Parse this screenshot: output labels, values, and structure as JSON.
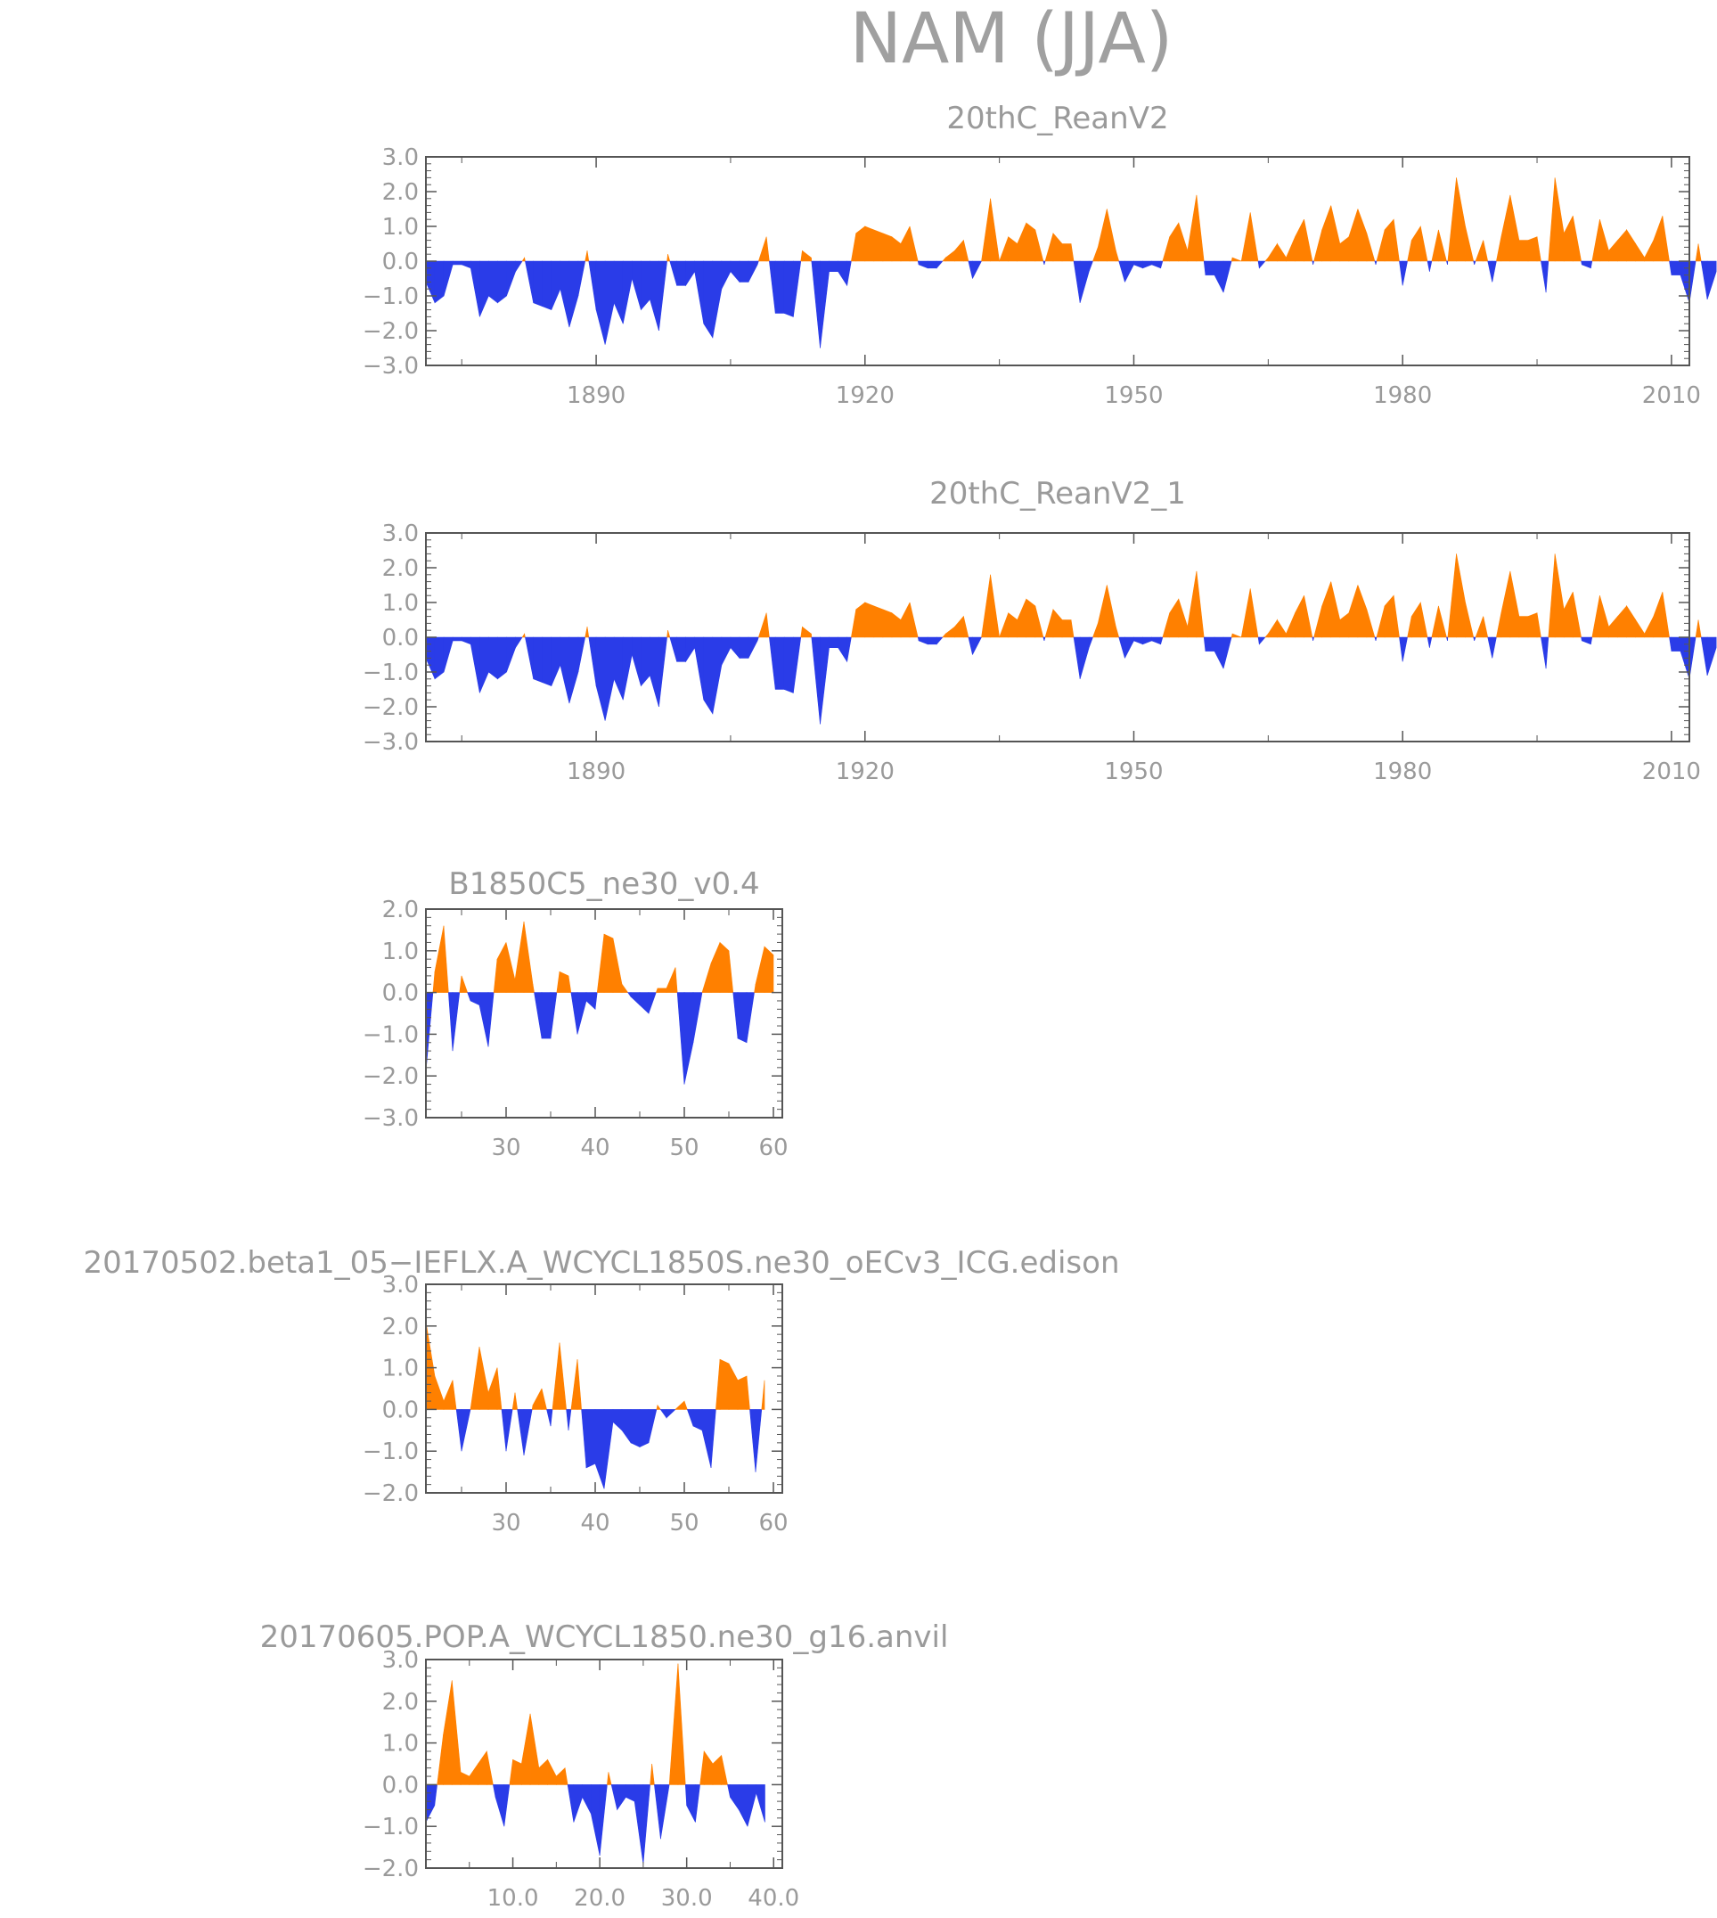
{
  "main_title": "NAM (JJA)",
  "colors": {
    "positive": "#ff8000",
    "negative": "#2a3ce8",
    "axis": "#555555",
    "text": "#9a9a9a"
  },
  "chart_data": [
    {
      "type": "area",
      "title": "20thC_ReanV2",
      "xlim": [
        1871,
        2012
      ],
      "ylim": [
        -3.0,
        3.0
      ],
      "xticks": [
        1890,
        1920,
        1950,
        1980,
        2010
      ],
      "xtick_labels": [
        "1890",
        "1920",
        "1950",
        "1980",
        "2010"
      ],
      "yticks": [
        -3.0,
        -2.0,
        -1.0,
        0.0,
        1.0,
        2.0,
        3.0
      ],
      "ytick_labels": [
        "−3.0",
        "−2.0",
        "−1.0",
        "0.0",
        "1.0",
        "2.0",
        "3.0"
      ],
      "x_start": 1871,
      "values": [
        -0.6,
        -1.2,
        -1.0,
        -0.1,
        -0.1,
        -0.2,
        -1.6,
        -1.0,
        -1.2,
        -1.0,
        -0.3,
        0.1,
        -1.2,
        -1.3,
        -1.4,
        -0.8,
        -1.9,
        -1.0,
        0.3,
        -1.4,
        -2.4,
        -1.2,
        -1.8,
        -0.5,
        -1.4,
        -1.1,
        -2.0,
        0.2,
        -0.7,
        -0.7,
        -0.3,
        -1.8,
        -2.2,
        -0.8,
        -0.3,
        -0.6,
        -0.6,
        -0.1,
        0.7,
        -1.5,
        -1.5,
        -1.6,
        0.3,
        0.1,
        -2.5,
        -0.3,
        -0.3,
        -0.7,
        0.8,
        1.0,
        0.9,
        0.8,
        0.7,
        0.5,
        1.0,
        -0.1,
        -0.2,
        -0.2,
        0.1,
        0.3,
        0.6,
        -0.5,
        0.0,
        1.8,
        0.0,
        0.7,
        0.5,
        1.1,
        0.9,
        -0.1,
        0.8,
        0.5,
        0.5,
        -1.2,
        -0.3,
        0.4,
        1.5,
        0.3,
        -0.6,
        -0.1,
        -0.2,
        -0.1,
        -0.2,
        0.7,
        1.1,
        0.3,
        1.9,
        -0.4,
        -0.4,
        -0.9,
        0.1,
        0.0,
        1.4,
        -0.2,
        0.1,
        0.5,
        0.1,
        0.7,
        1.2,
        -0.1,
        0.9,
        1.6,
        0.5,
        0.7,
        1.5,
        0.8,
        -0.1,
        0.9,
        1.2,
        -0.7,
        0.6,
        1.0,
        -0.3,
        0.9,
        -0.1,
        2.4,
        1.0,
        -0.1,
        0.6,
        -0.6,
        0.7,
        1.9,
        0.6,
        0.6,
        0.7,
        -0.9,
        2.4,
        0.8,
        1.3,
        -0.1,
        -0.2,
        1.2,
        0.3,
        0.6,
        0.9,
        0.5,
        0.1,
        0.6,
        1.3,
        -0.4,
        -0.4,
        -1.2,
        0.5,
        -1.1,
        -0.3
      ],
      "title_anchor": "plot-center"
    },
    {
      "type": "area",
      "title": "20thC_ReanV2_1",
      "xlim": [
        1871,
        2012
      ],
      "ylim": [
        -3.0,
        3.0
      ],
      "xticks": [
        1890,
        1920,
        1950,
        1980,
        2010
      ],
      "xtick_labels": [
        "1890",
        "1920",
        "1950",
        "1980",
        "2010"
      ],
      "yticks": [
        -3.0,
        -2.0,
        -1.0,
        0.0,
        1.0,
        2.0,
        3.0
      ],
      "ytick_labels": [
        "−3.0",
        "−2.0",
        "−1.0",
        "0.0",
        "1.0",
        "2.0",
        "3.0"
      ],
      "x_start": 1871,
      "values": [
        -0.6,
        -1.2,
        -1.0,
        -0.1,
        -0.1,
        -0.2,
        -1.6,
        -1.0,
        -1.2,
        -1.0,
        -0.3,
        0.1,
        -1.2,
        -1.3,
        -1.4,
        -0.8,
        -1.9,
        -1.0,
        0.3,
        -1.4,
        -2.4,
        -1.2,
        -1.8,
        -0.5,
        -1.4,
        -1.1,
        -2.0,
        0.2,
        -0.7,
        -0.7,
        -0.3,
        -1.8,
        -2.2,
        -0.8,
        -0.3,
        -0.6,
        -0.6,
        -0.1,
        0.7,
        -1.5,
        -1.5,
        -1.6,
        0.3,
        0.1,
        -2.5,
        -0.3,
        -0.3,
        -0.7,
        0.8,
        1.0,
        0.9,
        0.8,
        0.7,
        0.5,
        1.0,
        -0.1,
        -0.2,
        -0.2,
        0.1,
        0.3,
        0.6,
        -0.5,
        0.0,
        1.8,
        0.0,
        0.7,
        0.5,
        1.1,
        0.9,
        -0.1,
        0.8,
        0.5,
        0.5,
        -1.2,
        -0.3,
        0.4,
        1.5,
        0.3,
        -0.6,
        -0.1,
        -0.2,
        -0.1,
        -0.2,
        0.7,
        1.1,
        0.3,
        1.9,
        -0.4,
        -0.4,
        -0.9,
        0.1,
        0.0,
        1.4,
        -0.2,
        0.1,
        0.5,
        0.1,
        0.7,
        1.2,
        -0.1,
        0.9,
        1.6,
        0.5,
        0.7,
        1.5,
        0.8,
        -0.1,
        0.9,
        1.2,
        -0.7,
        0.6,
        1.0,
        -0.3,
        0.9,
        -0.1,
        2.4,
        1.0,
        -0.1,
        0.6,
        -0.6,
        0.7,
        1.9,
        0.6,
        0.6,
        0.7,
        -0.9,
        2.4,
        0.8,
        1.3,
        -0.1,
        -0.2,
        1.2,
        0.3,
        0.6,
        0.9,
        0.5,
        0.1,
        0.6,
        1.3,
        -0.4,
        -0.4,
        -1.2,
        0.5,
        -1.1,
        -0.3
      ],
      "title_anchor": "plot-center"
    },
    {
      "type": "area",
      "title": "B1850C5_ne30_v0.4",
      "xlim": [
        21,
        61
      ],
      "ylim": [
        -3.0,
        2.0
      ],
      "xticks": [
        30,
        40,
        50,
        60
      ],
      "xtick_labels": [
        "30",
        "40",
        "50",
        "60"
      ],
      "yticks": [
        -3.0,
        -2.0,
        -1.0,
        0.0,
        1.0,
        2.0
      ],
      "ytick_labels": [
        "−3.0",
        "−2.0",
        "−1.0",
        "0.0",
        "1.0",
        "2.0"
      ],
      "x_start": 21,
      "values": [
        -1.9,
        0.5,
        1.6,
        -1.4,
        0.4,
        -0.2,
        -0.3,
        -1.3,
        0.8,
        1.2,
        0.3,
        1.7,
        0.2,
        -1.1,
        -1.1,
        0.5,
        0.4,
        -1.0,
        -0.2,
        -0.4,
        1.4,
        1.3,
        0.2,
        -0.1,
        -0.3,
        -0.5,
        0.1,
        0.1,
        0.6,
        -2.2,
        -1.2,
        0.0,
        0.7,
        1.2,
        1.0,
        -1.1,
        -1.2,
        0.2,
        1.1,
        0.9
      ],
      "title_anchor": "plot-center"
    },
    {
      "type": "area",
      "title": "20170502.beta1_05−IEFLX.A_WCYCL1850S.ne30_oECv3_ICG.edison",
      "xlim": [
        21,
        61
      ],
      "ylim": [
        -2.0,
        3.0
      ],
      "xticks": [
        30,
        40,
        50,
        60
      ],
      "xtick_labels": [
        "30",
        "40",
        "50",
        "60"
      ],
      "yticks": [
        -2.0,
        -1.0,
        0.0,
        1.0,
        2.0,
        3.0
      ],
      "ytick_labels": [
        "−2.0",
        "−1.0",
        "0.0",
        "1.0",
        "2.0",
        "3.0"
      ],
      "x_start": 21,
      "values": [
        2.1,
        0.8,
        0.2,
        0.7,
        -1.0,
        0.0,
        1.5,
        0.4,
        1.0,
        -1.0,
        0.4,
        -1.1,
        0.1,
        0.5,
        -0.4,
        1.6,
        -0.5,
        1.2,
        -1.4,
        -1.3,
        -1.9,
        -0.3,
        -0.5,
        -0.8,
        -0.9,
        -0.8,
        0.1,
        -0.2,
        0.0,
        0.2,
        -0.4,
        -0.5,
        -1.4,
        1.2,
        1.1,
        0.7,
        0.8,
        -1.5,
        0.7
      ],
      "title_anchor": "page-center"
    },
    {
      "type": "area",
      "title": "20170605.POP.A_WCYCL1850.ne30_g16.anvil",
      "xlim": [
        0,
        41
      ],
      "ylim": [
        -2.0,
        3.0
      ],
      "xticks": [
        10.0,
        20.0,
        30.0,
        40.0
      ],
      "xtick_labels": [
        "10.0",
        "20.0",
        "30.0",
        "40.0"
      ],
      "yticks": [
        -2.0,
        -1.0,
        0.0,
        1.0,
        2.0,
        3.0
      ],
      "ytick_labels": [
        "−2.0",
        "−1.0",
        "0.0",
        "1.0",
        "2.0",
        "3.0"
      ],
      "x_start": 0,
      "values": [
        -0.9,
        -0.5,
        1.2,
        2.5,
        0.3,
        0.2,
        0.5,
        0.8,
        -0.3,
        -1.0,
        0.6,
        0.5,
        1.7,
        0.4,
        0.6,
        0.2,
        0.4,
        -0.9,
        -0.3,
        -0.7,
        -1.7,
        0.3,
        -0.6,
        -0.3,
        -0.4,
        -1.9,
        0.5,
        -1.3,
        0.0,
        2.9,
        -0.5,
        -0.9,
        0.8,
        0.5,
        0.7,
        -0.3,
        -0.6,
        -1.0,
        -0.2,
        -0.9
      ],
      "title_anchor": "plot-center"
    }
  ]
}
